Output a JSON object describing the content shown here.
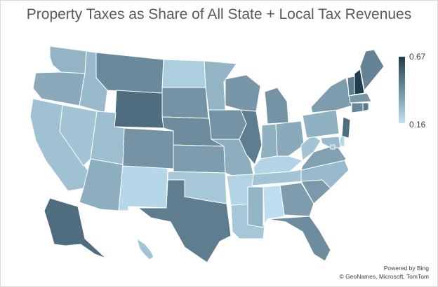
{
  "title": "Property Taxes as Share of All State + Local Tax Revenues",
  "legend": {
    "max_label": "0.67",
    "min_label": "0.16",
    "min_value": 0.16,
    "max_value": 0.67,
    "color_low": "#bfe1f2",
    "color_high": "#1f3d4f"
  },
  "credits": {
    "line1": "Powered by Bing",
    "line2": "© GeoNames, Microsoft, TomTom"
  },
  "map_data": {
    "type": "choropleth",
    "states": [
      {
        "code": "WA",
        "value": 0.3
      },
      {
        "code": "OR",
        "value": 0.33
      },
      {
        "code": "CA",
        "value": 0.26
      },
      {
        "code": "NV",
        "value": 0.25
      },
      {
        "code": "ID",
        "value": 0.28
      },
      {
        "code": "MT",
        "value": 0.43
      },
      {
        "code": "WY",
        "value": 0.52
      },
      {
        "code": "UT",
        "value": 0.27
      },
      {
        "code": "AZ",
        "value": 0.32
      },
      {
        "code": "NM",
        "value": 0.19
      },
      {
        "code": "CO",
        "value": 0.4
      },
      {
        "code": "ND",
        "value": 0.22
      },
      {
        "code": "SD",
        "value": 0.4
      },
      {
        "code": "NE",
        "value": 0.42
      },
      {
        "code": "KS",
        "value": 0.37
      },
      {
        "code": "OK",
        "value": 0.24
      },
      {
        "code": "TX",
        "value": 0.47
      },
      {
        "code": "MN",
        "value": 0.3
      },
      {
        "code": "IA",
        "value": 0.4
      },
      {
        "code": "MO",
        "value": 0.32
      },
      {
        "code": "AR",
        "value": 0.2
      },
      {
        "code": "LA",
        "value": 0.24
      },
      {
        "code": "WI",
        "value": 0.39
      },
      {
        "code": "IL",
        "value": 0.47
      },
      {
        "code": "MI",
        "value": 0.4
      },
      {
        "code": "IN",
        "value": 0.31
      },
      {
        "code": "OH",
        "value": 0.33
      },
      {
        "code": "KY",
        "value": 0.2
      },
      {
        "code": "TN",
        "value": 0.25
      },
      {
        "code": "MS",
        "value": 0.3
      },
      {
        "code": "AL",
        "value": 0.17
      },
      {
        "code": "GA",
        "value": 0.37
      },
      {
        "code": "FL",
        "value": 0.42
      },
      {
        "code": "SC",
        "value": 0.38
      },
      {
        "code": "NC",
        "value": 0.28
      },
      {
        "code": "VA",
        "value": 0.36
      },
      {
        "code": "WV",
        "value": 0.25
      },
      {
        "code": "PA",
        "value": 0.31
      },
      {
        "code": "NY",
        "value": 0.37
      },
      {
        "code": "VT",
        "value": 0.47
      },
      {
        "code": "NH",
        "value": 0.67
      },
      {
        "code": "ME",
        "value": 0.45
      },
      {
        "code": "MA",
        "value": 0.39
      },
      {
        "code": "CT",
        "value": 0.44
      },
      {
        "code": "RI",
        "value": 0.48
      },
      {
        "code": "NJ",
        "value": 0.52
      },
      {
        "code": "DE",
        "value": 0.19
      },
      {
        "code": "MD",
        "value": 0.28
      },
      {
        "code": "DC",
        "value": 0.27
      },
      {
        "code": "AK",
        "value": 0.52
      },
      {
        "code": "HI",
        "value": 0.25
      }
    ]
  }
}
